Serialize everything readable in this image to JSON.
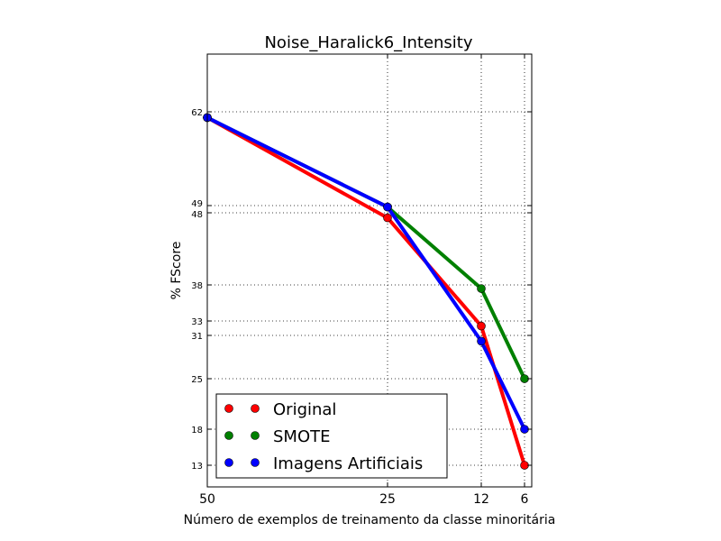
{
  "chart_data": {
    "type": "line",
    "title": "Noise_Haralick6_Intensity",
    "xlabel": "Número de exemplos de treinamento da classe minoritária",
    "ylabel": "% FScore",
    "x": [
      50,
      25,
      12,
      6
    ],
    "x_tick_labels": [
      "50",
      "25",
      "12",
      "6"
    ],
    "xlim": [
      50,
      5
    ],
    "ylim": [
      10,
      70
    ],
    "y_ticks": [
      13,
      18,
      25,
      31,
      33,
      38,
      48,
      49,
      62
    ],
    "y_tick_labels": [
      "13",
      "18",
      "25",
      "31",
      "33",
      "38",
      "48",
      "49",
      "62"
    ],
    "grid": true,
    "legend_position": "lower-left",
    "series": [
      {
        "name": "Original",
        "color": "#ff0000",
        "values": [
          61.2,
          47.3,
          32.3,
          13
        ]
      },
      {
        "name": "SMOTE",
        "color": "#008000",
        "values": [
          61.2,
          48.8,
          37.5,
          25
        ]
      },
      {
        "name": "Imagens Artificiais",
        "color": "#0000ff",
        "values": [
          61.2,
          48.8,
          30.2,
          18
        ]
      }
    ]
  }
}
